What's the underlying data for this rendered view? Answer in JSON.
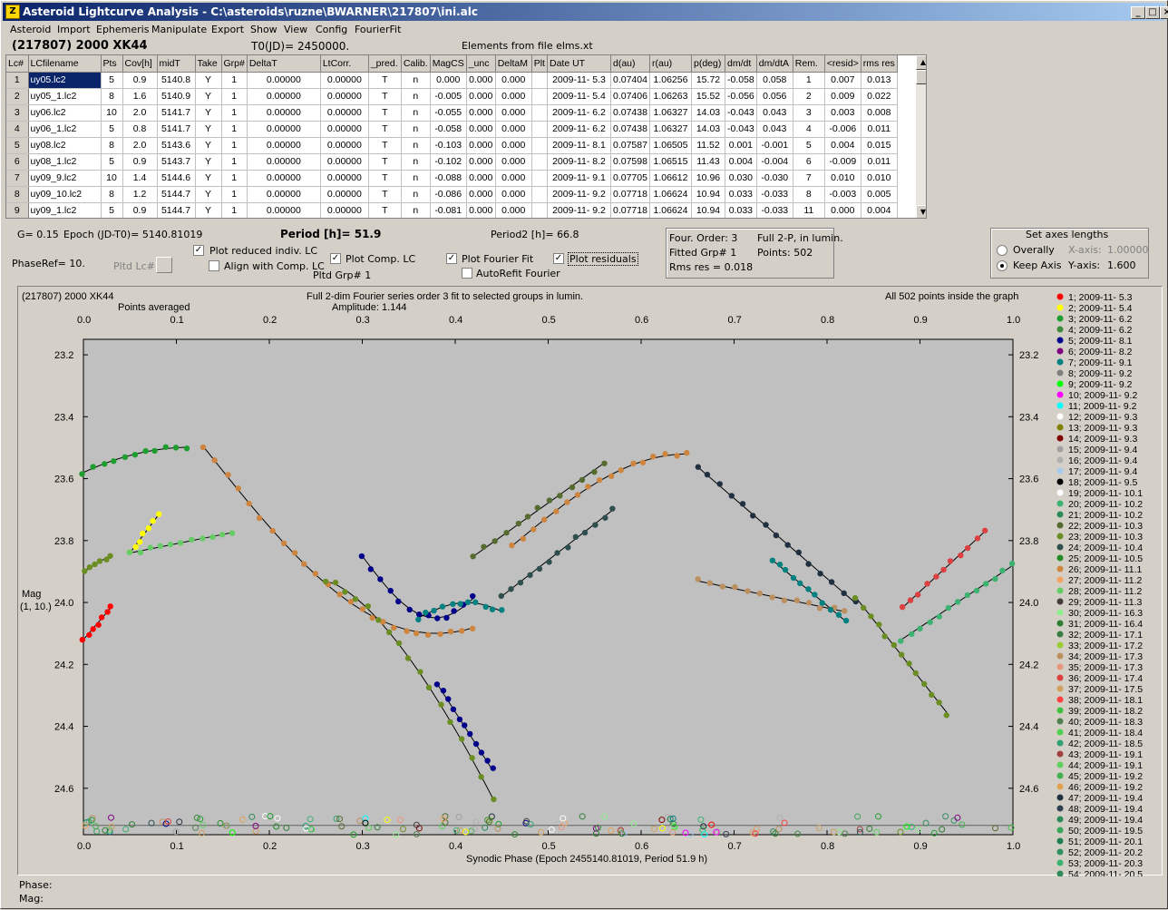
{
  "window": {
    "title": "Asteroid Lightcurve Analysis - C:\\asteroids\\ruzne\\BWARNER\\217807\\ini.alc",
    "min": "_",
    "max": "□",
    "close": "×"
  },
  "menu": [
    "Asteroid",
    "Import",
    "Ephemeris",
    "Manipulate",
    "Export",
    "Show",
    "View",
    "Config",
    "FourierFit"
  ],
  "header": {
    "object": "(217807) 2000 XK44",
    "t0": "T0(JD)= 2450000.",
    "elements": "Elements from file elms.xt"
  },
  "table": {
    "columns": [
      "Lc#",
      "LCfilename",
      "Pts",
      "Cov[h]",
      "midT",
      "Take",
      "Grp#",
      "DeltaT",
      "LtCorr.",
      "_pred.",
      "Calib.",
      "MagCS",
      "_unc",
      "DeltaM",
      "Plt",
      "Date UT",
      "d(au)",
      "r(au)",
      "p(deg)",
      "dm/dt",
      "dm/dtA",
      "Rem.",
      "<resid>",
      "rms res"
    ],
    "rows": [
      [
        "1",
        "uy05.lc2",
        "5",
        "0.9",
        "5140.8",
        "Y",
        "1",
        "0.00000",
        "0.00000",
        "T",
        "n",
        "0.000",
        "0.000",
        "0.000",
        "",
        "2009-11- 5.3",
        "0.07404",
        "1.06256",
        "15.72",
        "-0.058",
        "0.058",
        "1",
        "0.007",
        "0.013"
      ],
      [
        "2",
        "uy05_1.lc2",
        "8",
        "1.6",
        "5140.9",
        "Y",
        "1",
        "0.00000",
        "0.00000",
        "T",
        "n",
        "-0.005",
        "0.000",
        "0.000",
        "",
        "2009-11- 5.4",
        "0.07406",
        "1.06263",
        "15.52",
        "-0.056",
        "0.056",
        "2",
        "0.009",
        "0.022"
      ],
      [
        "3",
        "uy06.lc2",
        "10",
        "2.0",
        "5141.7",
        "Y",
        "1",
        "0.00000",
        "0.00000",
        "T",
        "n",
        "-0.055",
        "0.000",
        "0.000",
        "",
        "2009-11- 6.2",
        "0.07438",
        "1.06327",
        "14.03",
        "-0.043",
        "0.043",
        "3",
        "0.003",
        "0.008"
      ],
      [
        "4",
        "uy06_1.lc2",
        "5",
        "0.8",
        "5141.7",
        "Y",
        "1",
        "0.00000",
        "0.00000",
        "T",
        "n",
        "-0.058",
        "0.000",
        "0.000",
        "",
        "2009-11- 6.2",
        "0.07438",
        "1.06327",
        "14.03",
        "-0.043",
        "0.043",
        "4",
        "-0.006",
        "0.011"
      ],
      [
        "5",
        "uy08.lc2",
        "8",
        "2.0",
        "5143.6",
        "Y",
        "1",
        "0.00000",
        "0.00000",
        "T",
        "n",
        "-0.103",
        "0.000",
        "0.000",
        "",
        "2009-11- 8.1",
        "0.07587",
        "1.06505",
        "11.52",
        "0.001",
        "-0.001",
        "5",
        "0.004",
        "0.015"
      ],
      [
        "6",
        "uy08_1.lc2",
        "5",
        "0.9",
        "5143.7",
        "Y",
        "1",
        "0.00000",
        "0.00000",
        "T",
        "n",
        "-0.102",
        "0.000",
        "0.000",
        "",
        "2009-11- 8.2",
        "0.07598",
        "1.06515",
        "11.43",
        "0.004",
        "-0.004",
        "6",
        "-0.009",
        "0.011"
      ],
      [
        "7",
        "uy09_9.lc2",
        "10",
        "1.4",
        "5144.6",
        "Y",
        "1",
        "0.00000",
        "0.00000",
        "T",
        "n",
        "-0.088",
        "0.000",
        "0.000",
        "",
        "2009-11- 9.1",
        "0.07705",
        "1.06612",
        "10.96",
        "0.030",
        "-0.030",
        "7",
        "0.010",
        "0.010"
      ],
      [
        "8",
        "uy09_10.lc2",
        "8",
        "1.2",
        "5144.7",
        "Y",
        "1",
        "0.00000",
        "0.00000",
        "T",
        "n",
        "-0.086",
        "0.000",
        "0.000",
        "",
        "2009-11- 9.2",
        "0.07718",
        "1.06624",
        "10.94",
        "0.033",
        "-0.033",
        "8",
        "-0.003",
        "0.005"
      ],
      [
        "9",
        "uy09_1.lc2",
        "5",
        "0.9",
        "5144.7",
        "Y",
        "1",
        "0.00000",
        "0.00000",
        "T",
        "n",
        "-0.081",
        "0.000",
        "0.000",
        "",
        "2009-11- 9.2",
        "0.07718",
        "1.06624",
        "10.94",
        "0.033",
        "-0.033",
        "11",
        "0.000",
        "0.004"
      ]
    ]
  },
  "controls": {
    "g": "G= 0.15",
    "epoch": "Epoch (JD-T0)= 5140.81019",
    "period": "Period [h]= 51.9",
    "period2": "Period2 [h]= 66.8",
    "phaseref": "PhaseRef= 10.",
    "pltd_lc": "Pltd Lc#:",
    "pltd_grp": "Pltd Grp#  1",
    "plot_reduced": "Plot reduced indiv. LC",
    "align": "Align with Comp. LC",
    "plot_comp": "Plot Comp. LC",
    "plot_fourier": "Plot Fourier Fit",
    "autorefit": "AutoRefit Fourier",
    "plot_resid": "Plot residuals",
    "four_order": "Four. Order:  3",
    "fitted_grp": "Fitted Grp# 1",
    "rms_res": "Rms res    = 0.018",
    "full2p": "Full 2-P, in lumin.",
    "points": "Points: 502",
    "axes_title": "Set axes lengths",
    "overally": "Overally",
    "keep_axis": "Keep Axis",
    "xaxis_lbl": "X-axis:",
    "xaxis_val": "1.00000",
    "yaxis_lbl": "Y-axis:",
    "yaxis_val": "1.600"
  },
  "plot": {
    "title_left": "(217807) 2000 XK44",
    "title_center": "Full 2-dim Fourier series order 3 fit to selected groups in lumin.",
    "title_right": "All 502 points inside the graph",
    "points_avg": "Points averaged",
    "amplitude": "Amplitude: 1.144",
    "ylabel": "Mag",
    "ylabel2": "(1, 10.)",
    "xlabel": "Synodic Phase (Epoch 2455140.81019, Period 51.9 h)",
    "xticks": [
      "0.0",
      "0.1",
      "0.2",
      "0.3",
      "0.4",
      "0.5",
      "0.6",
      "0.7",
      "0.8",
      "0.9",
      "1.0"
    ],
    "yticks": [
      "23.2",
      "23.4",
      "23.6",
      "23.8",
      "24.0",
      "24.2",
      "24.4",
      "24.6"
    ]
  },
  "legend": [
    {
      "label": "1; 2009-11- 5.3",
      "color": "#ff0000"
    },
    {
      "label": "2; 2009-11- 5.4",
      "color": "#ffff00"
    },
    {
      "label": "3; 2009-11- 6.2",
      "color": "#1e9e2e"
    },
    {
      "label": "4; 2009-11- 6.2",
      "color": "#3c8a3c"
    },
    {
      "label": "5; 2009-11- 8.1",
      "color": "#00008b"
    },
    {
      "label": "6; 2009-11- 8.2",
      "color": "#800080"
    },
    {
      "label": "7; 2009-11- 9.1",
      "color": "#008080"
    },
    {
      "label": "8; 2009-11- 9.2",
      "color": "#808080"
    },
    {
      "label": "9; 2009-11- 9.2",
      "color": "#00ff00"
    },
    {
      "label": "10; 2009-11- 9.2",
      "color": "#ff00ff"
    },
    {
      "label": "11; 2009-11- 9.2",
      "color": "#00ffff"
    },
    {
      "label": "12; 2009-11- 9.3",
      "color": "#ffffff"
    },
    {
      "label": "13; 2009-11- 9.3",
      "color": "#808000"
    },
    {
      "label": "14; 2009-11- 9.3",
      "color": "#800000"
    },
    {
      "label": "15; 2009-11- 9.4",
      "color": "#a0a0a0"
    },
    {
      "label": "16; 2009-11- 9.4",
      "color": "#b0b0b0"
    },
    {
      "label": "17; 2009-11- 9.4",
      "color": "#a6caf0"
    },
    {
      "label": "18; 2009-11- 9.5",
      "color": "#000000"
    },
    {
      "label": "19; 2009-11- 10.1",
      "color": "#ffffff"
    },
    {
      "label": "20; 2009-11- 10.2",
      "color": "#3cb371"
    },
    {
      "label": "21; 2009-11- 10.2",
      "color": "#2e8b57"
    },
    {
      "label": "22; 2009-11- 10.3",
      "color": "#556b2f"
    },
    {
      "label": "23; 2009-11- 10.3",
      "color": "#6b8e23"
    },
    {
      "label": "24; 2009-11- 10.4",
      "color": "#2f4f4f"
    },
    {
      "label": "25; 2009-11- 10.5",
      "color": "#228b22"
    },
    {
      "label": "26; 2009-11- 11.1",
      "color": "#cd853f"
    },
    {
      "label": "27; 2009-11- 11.2",
      "color": "#f4a460"
    },
    {
      "label": "28; 2009-11- 11.2",
      "color": "#66cc66"
    },
    {
      "label": "29; 2009-11- 11.3",
      "color": "#483d3b"
    },
    {
      "label": "30; 2009-11- 16.3",
      "color": "#90ee90"
    },
    {
      "label": "31; 2009-11- 16.4",
      "color": "#2e7d32"
    },
    {
      "label": "32; 2009-11- 17.1",
      "color": "#3a7d44"
    },
    {
      "label": "33; 2009-11- 17.2",
      "color": "#9acd32"
    },
    {
      "label": "34; 2009-11- 17.3",
      "color": "#bc8f5f"
    },
    {
      "label": "35; 2009-11- 17.3",
      "color": "#e9967a"
    },
    {
      "label": "36; 2009-11- 17.4",
      "color": "#dc4040"
    },
    {
      "label": "37; 2009-11- 17.5",
      "color": "#d2a060"
    },
    {
      "label": "38; 2009-11- 18.1",
      "color": "#ff4040"
    },
    {
      "label": "39; 2009-11- 18.2",
      "color": "#40c040"
    },
    {
      "label": "40; 2009-11- 18.3",
      "color": "#508050"
    },
    {
      "label": "41; 2009-11- 18.4",
      "color": "#50d050"
    },
    {
      "label": "42; 2009-11- 18.5",
      "color": "#30a070"
    },
    {
      "label": "43; 2009-11- 19.1",
      "color": "#a04040"
    },
    {
      "label": "44; 2009-11- 19.1",
      "color": "#60d060"
    },
    {
      "label": "45; 2009-11- 19.2",
      "color": "#40b050"
    },
    {
      "label": "46; 2009-11- 19.2",
      "color": "#e0a050"
    },
    {
      "label": "47; 2009-11- 19.4",
      "color": "#203040"
    },
    {
      "label": "48; 2009-11- 19.4",
      "color": "#304050"
    },
    {
      "label": "49; 2009-11- 19.4",
      "color": "#2e8b57"
    },
    {
      "label": "50; 2009-11- 19.5",
      "color": "#38a858"
    },
    {
      "label": "51; 2009-11- 20.1",
      "color": "#208050"
    },
    {
      "label": "52; 2009-11- 20.2",
      "color": "#309060"
    },
    {
      "label": "53; 2009-11- 20.3",
      "color": "#3cb371"
    },
    {
      "label": "54; 2009-11- 20.5",
      "color": "#2e8b57"
    }
  ],
  "status": {
    "phase": "Phase:",
    "mag": "Mag:"
  }
}
